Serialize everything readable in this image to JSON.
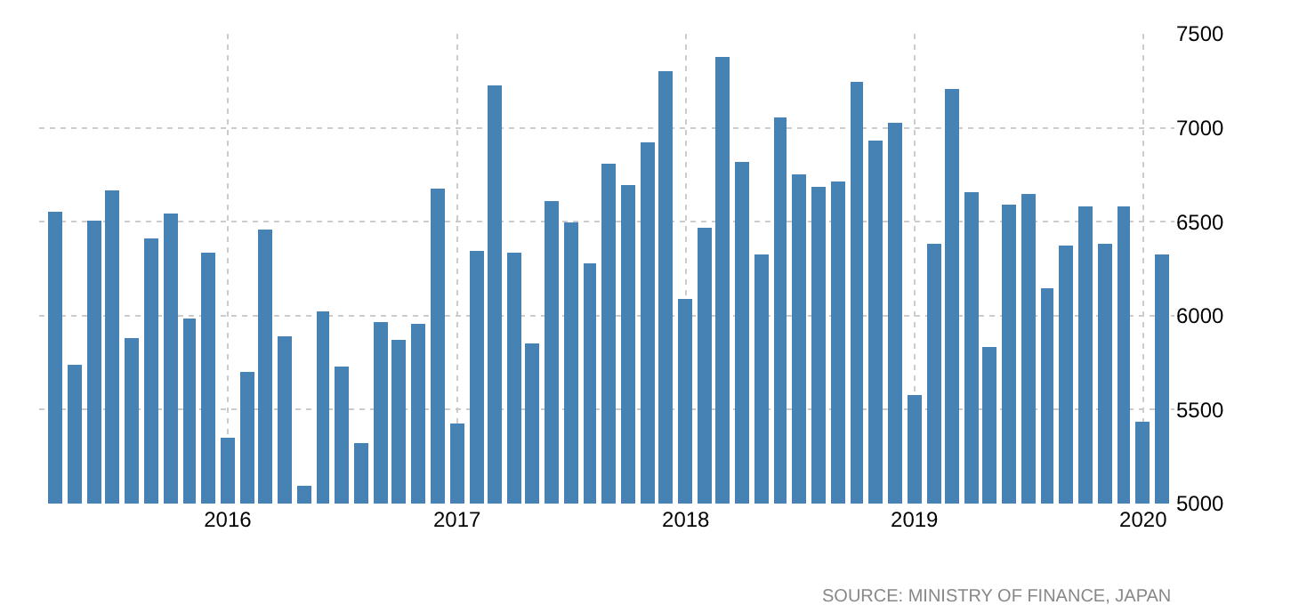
{
  "chart_data": {
    "type": "bar",
    "x": [
      "2015-04",
      "2015-05",
      "2015-06",
      "2015-07",
      "2015-08",
      "2015-09",
      "2015-10",
      "2015-11",
      "2015-12",
      "2016-01",
      "2016-02",
      "2016-03",
      "2016-04",
      "2016-05",
      "2016-06",
      "2016-07",
      "2016-08",
      "2016-09",
      "2016-10",
      "2016-11",
      "2016-12",
      "2017-01",
      "2017-02",
      "2017-03",
      "2017-04",
      "2017-05",
      "2017-06",
      "2017-07",
      "2017-08",
      "2017-09",
      "2017-10",
      "2017-11",
      "2017-12",
      "2018-01",
      "2018-02",
      "2018-03",
      "2018-04",
      "2018-05",
      "2018-06",
      "2018-07",
      "2018-08",
      "2018-09",
      "2018-10",
      "2018-11",
      "2018-12",
      "2019-01",
      "2019-02",
      "2019-03",
      "2019-04",
      "2019-05",
      "2019-06",
      "2019-07",
      "2019-08",
      "2019-09",
      "2019-10",
      "2019-11",
      "2019-12",
      "2020-01",
      "2020-02"
    ],
    "values": [
      6556,
      5742,
      6509,
      6670,
      5884,
      6414,
      6547,
      5988,
      6338,
      5354,
      5704,
      6461,
      5893,
      5098,
      6026,
      5732,
      5325,
      5969,
      5874,
      5960,
      6679,
      5429,
      6348,
      7229,
      6338,
      5855,
      6613,
      6499,
      6281,
      6812,
      6698,
      6925,
      7304,
      6092,
      6471,
      7380,
      6821,
      6329,
      7058,
      6755,
      6689,
      6717,
      7247,
      6935,
      7030,
      5581,
      6386,
      7210,
      6660,
      5836,
      6594,
      6651,
      6149,
      6376,
      6585,
      6386,
      6585,
      5439,
      6329
    ],
    "color": "#4682b4",
    "xlim": [
      "2015-03-06",
      "2020-02-20"
    ],
    "xticks": [
      {
        "value": "2016-01-01",
        "label": "2016"
      },
      {
        "value": "2017-01-01",
        "label": "2017"
      },
      {
        "value": "2018-01-01",
        "label": "2018"
      },
      {
        "value": "2019-01-01",
        "label": "2019"
      },
      {
        "value": "2020-01-01",
        "label": "2020"
      }
    ],
    "ylim": [
      5000,
      7500
    ],
    "yticks": [
      5000,
      5500,
      6000,
      6500,
      7000,
      7500
    ],
    "grid": true,
    "annotations": [
      "SOURCE: MINISTRY OF FINANCE, JAPAN"
    ]
  }
}
